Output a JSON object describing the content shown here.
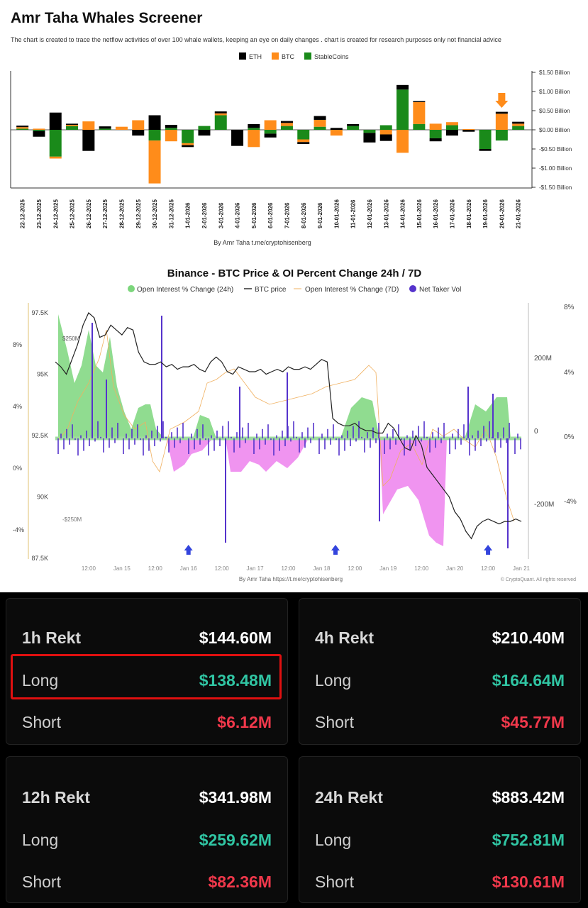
{
  "header": {
    "title": "Amr Taha Whales Screener",
    "subtitle": "The chart is created to trace the netflow activities of over 100 whale wallets, keeping an eye on daily changes . chart is created for research purposes only not financial advice"
  },
  "chart_data": [
    {
      "type": "bar",
      "stacked": true,
      "legend": [
        "ETH",
        "BTC",
        "StableCoins"
      ],
      "legend_position": "top-center",
      "colors": {
        "ETH": "#000000",
        "BTC": "#ff8c1a",
        "StableCoins": "#1a8a1a"
      },
      "y_ticks": [
        "$1.50 Billion",
        "$1.00 Billion",
        "$0.50 Billion",
        "$0.00 Billion",
        "-$0.50 Billion",
        "-$1.00 Billion",
        "-$1.50 Billion"
      ],
      "ylim": [
        -1.5,
        1.5
      ],
      "yaxis_position": "right",
      "categories": [
        "22-12-2025",
        "23-12-2025",
        "24-12-2025",
        "25-12-2025",
        "26-12-2025",
        "27-12-2025",
        "28-12-2025",
        "29-12-2025",
        "30-12-2025",
        "31-12-2025",
        "1-01-2026",
        "2-01-2026",
        "3-01-2026",
        "4-01-2026",
        "5-01-2026",
        "6-01-2026",
        "7-01-2026",
        "8-01-2026",
        "9-01-2026",
        "10-01-2026",
        "11-01-2026",
        "12-01-2026",
        "13-01-2026",
        "14-01-2026",
        "15-01-2026",
        "16-01-2026",
        "17-01-2026",
        "18-01-2026",
        "19-01-2026",
        "20-01-2026",
        "21-01-2026"
      ],
      "series": [
        {
          "name": "StableCoins",
          "values": [
            0.03,
            -0.03,
            -0.7,
            0.1,
            0.0,
            0.03,
            0.0,
            0.0,
            -0.28,
            0.05,
            -0.35,
            0.1,
            0.38,
            0.0,
            0.05,
            -0.1,
            0.1,
            -0.25,
            0.08,
            0.0,
            0.1,
            -0.08,
            0.12,
            1.05,
            0.15,
            -0.22,
            0.12,
            0.0,
            -0.5,
            -0.28,
            0.1
          ]
        },
        {
          "name": "BTC",
          "values": [
            0.04,
            0.03,
            -0.05,
            0.03,
            0.22,
            0.0,
            0.08,
            0.25,
            -1.12,
            -0.3,
            -0.05,
            0.0,
            0.05,
            0.0,
            -0.45,
            0.25,
            0.08,
            -0.07,
            0.18,
            -0.15,
            0.0,
            0.0,
            -0.12,
            -0.6,
            0.58,
            0.16,
            0.08,
            0.02,
            0.0,
            0.42,
            0.06
          ]
        },
        {
          "name": "ETH",
          "values": [
            0.04,
            -0.15,
            0.45,
            0.03,
            -0.55,
            0.06,
            0.0,
            -0.15,
            0.38,
            0.08,
            -0.05,
            -0.15,
            0.05,
            -0.42,
            0.1,
            -0.1,
            0.05,
            -0.05,
            0.1,
            0.05,
            0.05,
            -0.25,
            -0.17,
            0.12,
            0.02,
            -0.08,
            -0.15,
            -0.05,
            -0.05,
            0.05,
            0.05
          ]
        }
      ],
      "annotation": "By Amr Taha t.me/cryptohisenberg",
      "marker_category": "20-01-2026"
    },
    {
      "type": "line",
      "title": "Binance - BTC Price & OI Percent Change 24h / 7D",
      "legend": [
        "Open Interest % Change (24h)",
        "BTC price",
        "Open Interest % Change (7D)",
        "Net Taker Vol"
      ],
      "legend_position": "top-center",
      "colors": {
        "oi24h_pos": "#7cd67c",
        "oi24h_neg": "#ee88ee",
        "price": "#222222",
        "oi7d": "#f0b060",
        "taker": "#5533cc"
      },
      "left_axis_price_ticks": [
        "97.5K",
        "95K",
        "92.5K",
        "90K",
        "87.5K"
      ],
      "left_axis_price_range": [
        87500,
        97500
      ],
      "left_axis_pct_ticks": [
        "8%",
        "4%",
        "0%",
        "-4%"
      ],
      "right_axis_vol_ticks": [
        "200M",
        "0",
        "-200M"
      ],
      "right_axis_pct_ticks": [
        "8%",
        "4%",
        "0%",
        "-4%"
      ],
      "x_ticks": [
        "12:00",
        "Jan 15",
        "12:00",
        "Jan 16",
        "12:00",
        "Jan 17",
        "12:00",
        "Jan 18",
        "12:00",
        "Jan 19",
        "12:00",
        "Jan 20",
        "12:00",
        "Jan 21"
      ],
      "x_hours": [
        0,
        12,
        24,
        36,
        48,
        60,
        72,
        84,
        96,
        108,
        120,
        132,
        144,
        156,
        168
      ],
      "price_x_range": [
        0,
        168
      ],
      "price": {
        "x": [
          0,
          2,
          4,
          6,
          8,
          10,
          12,
          14,
          16,
          18,
          20,
          22,
          24,
          26,
          28,
          30,
          32,
          34,
          36,
          38,
          40,
          42,
          44,
          46,
          48,
          50,
          52,
          54,
          56,
          58,
          60,
          62,
          64,
          66,
          68,
          70,
          72,
          74,
          76,
          78,
          80,
          82,
          84,
          86,
          88,
          90,
          92,
          94,
          96,
          98,
          100,
          102,
          104,
          106,
          108,
          110,
          112,
          114,
          116,
          118,
          120,
          122,
          124,
          126,
          128,
          130,
          132,
          134,
          136,
          138,
          140,
          142,
          144,
          146,
          148,
          150,
          152,
          154,
          156,
          158,
          160,
          162,
          164,
          166,
          168
        ],
        "y": [
          95500,
          95300,
          95000,
          95600,
          96200,
          97000,
          97500,
          97300,
          96500,
          96600,
          97000,
          96800,
          96600,
          96900,
          96800,
          95900,
          95500,
          95400,
          95400,
          95500,
          95300,
          95400,
          95200,
          95300,
          95300,
          95400,
          95200,
          95100,
          95500,
          95700,
          95500,
          95100,
          95000,
          95300,
          95200,
          95100,
          95100,
          95200,
          95000,
          95100,
          95200,
          95100,
          95300,
          95200,
          95200,
          95300,
          95200,
          95400,
          95600,
          95500,
          93200,
          93000,
          92900,
          92900,
          93000,
          92800,
          92700,
          92700,
          92600,
          92600,
          93000,
          92800,
          92400,
          92000,
          91900,
          92500,
          92100,
          91200,
          90900,
          90600,
          90300,
          90000,
          89400,
          89100,
          88600,
          88300,
          88800,
          89000,
          89100,
          89000,
          88900,
          89000,
          89000,
          89100,
          89000
        ]
      },
      "markers_x": [
        48,
        101,
        156
      ],
      "labels": {
        "vol_pos": "$250M",
        "vol_neg": "-$250M"
      },
      "annotation": "By Amr Taha https://t.me/cryptohisenberg",
      "credit": "© CryptoQuant. All rights reserved"
    }
  ],
  "chart1_legend": {
    "eth": "ETH",
    "btc": "BTC",
    "stable": "StableCoins"
  },
  "chart1_credit": "By Amr Taha  t.me/cryptohisenberg",
  "chart2_text": {
    "title": "Binance - BTC Price & OI Percent Change 24h / 7D",
    "legend_oi24": "Open Interest % Change (24h)",
    "legend_price": "BTC price",
    "legend_oi7": "Open Interest % Change (7D)",
    "legend_taker": "Net Taker Vol",
    "credit": "By Amr Taha https://t.me/cryptohisenberg",
    "copyright": "© CryptoQuant. All rights reserved",
    "vol_pos": "$250M",
    "vol_neg": "-$250M"
  },
  "rekt": [
    {
      "period": "1h Rekt",
      "total": "$144.60M",
      "long_label": "Long",
      "long": "$138.48M",
      "short_label": "Short",
      "short": "$6.12M"
    },
    {
      "period": "4h Rekt",
      "total": "$210.40M",
      "long_label": "Long",
      "long": "$164.64M",
      "short_label": "Short",
      "short": "$45.77M"
    },
    {
      "period": "12h Rekt",
      "total": "$341.98M",
      "long_label": "Long",
      "long": "$259.62M",
      "short_label": "Short",
      "short": "$82.36M"
    },
    {
      "period": "24h Rekt",
      "total": "$883.42M",
      "long_label": "Long",
      "long": "$752.81M",
      "short_label": "Short",
      "short": "$130.61M"
    }
  ]
}
